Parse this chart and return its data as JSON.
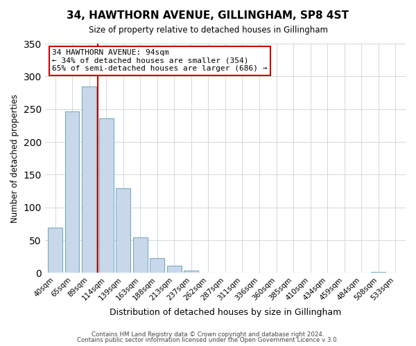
{
  "title": "34, HAWTHORN AVENUE, GILLINGHAM, SP8 4ST",
  "subtitle": "Size of property relative to detached houses in Gillingham",
  "xlabel": "Distribution of detached houses by size in Gillingham",
  "ylabel": "Number of detached properties",
  "bar_labels": [
    "40sqm",
    "65sqm",
    "89sqm",
    "114sqm",
    "139sqm",
    "163sqm",
    "188sqm",
    "213sqm",
    "237sqm",
    "262sqm",
    "287sqm",
    "311sqm",
    "336sqm",
    "360sqm",
    "385sqm",
    "410sqm",
    "434sqm",
    "459sqm",
    "484sqm",
    "508sqm",
    "533sqm"
  ],
  "bar_values": [
    69,
    246,
    285,
    236,
    129,
    54,
    23,
    11,
    4,
    0,
    0,
    0,
    0,
    0,
    0,
    0,
    0,
    0,
    0,
    2,
    0
  ],
  "bar_color": "#c8d8ea",
  "bar_edgecolor": "#7aaabf",
  "ylim": [
    0,
    350
  ],
  "yticks": [
    0,
    50,
    100,
    150,
    200,
    250,
    300,
    350
  ],
  "property_line_x": 2.5,
  "property_line_color": "#cc0000",
  "annotation_title": "34 HAWTHORN AVENUE: 94sqm",
  "annotation_line1": "← 34% of detached houses are smaller (354)",
  "annotation_line2": "65% of semi-detached houses are larger (686) →",
  "annotation_box_facecolor": "#ffffff",
  "annotation_box_edgecolor": "#cc0000",
  "footer1": "Contains HM Land Registry data © Crown copyright and database right 2024.",
  "footer2": "Contains public sector information licensed under the Open Government Licence v 3.0.",
  "background_color": "#ffffff",
  "plot_background": "#ffffff",
  "grid_color": "#d0d8e0"
}
